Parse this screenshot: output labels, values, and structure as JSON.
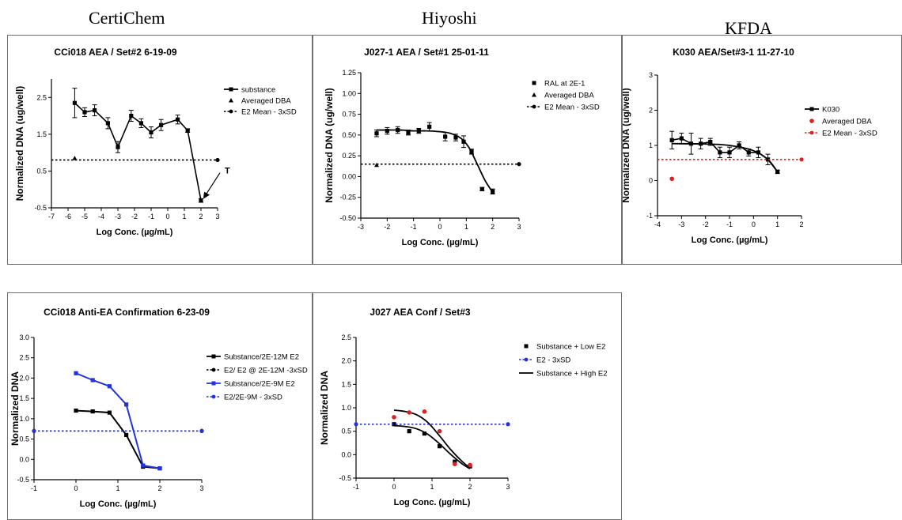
{
  "labs": [
    "CertiChem",
    "Hiyoshi",
    "KFDA"
  ],
  "chart_data": [
    {
      "type": "line",
      "title": "CCi018 AEA / Set#2 6-19-09",
      "xlabel": "Log Conc. (µg/mL)",
      "ylabel": "Normalized DNA  (ug/well)",
      "xlim": [
        -7,
        3
      ],
      "ylim": [
        -0.5,
        3.0
      ],
      "xticks": [
        "-7",
        "-6",
        "-5",
        "-4",
        "-3",
        "-2",
        "-1",
        "0",
        "1",
        "2",
        "3"
      ],
      "yticks": [
        "-0.5",
        "0.5",
        "1.5",
        "2.5"
      ],
      "grid": false,
      "legend_position": "right",
      "annotation": "T",
      "series": [
        {
          "name": "substance",
          "style": "solid-square",
          "color": "#000000",
          "x": [
            -5.6,
            -5.0,
            -4.4,
            -3.6,
            -3.0,
            -2.2,
            -1.6,
            -1.0,
            -0.4,
            0.6,
            1.2,
            2.0
          ],
          "y": [
            2.35,
            2.1,
            2.15,
            1.8,
            1.15,
            2.0,
            1.8,
            1.55,
            1.75,
            1.9,
            1.6,
            -0.3
          ],
          "err": [
            0.4,
            0.12,
            0.15,
            0.15,
            0.15,
            0.15,
            0.12,
            0.15,
            0.15,
            0.12,
            0.05,
            0.05
          ]
        },
        {
          "name": "Averaged DBA",
          "style": "triangle-only",
          "color": "#000000",
          "x": [
            -5.6
          ],
          "y": [
            0.85
          ]
        },
        {
          "name": "E2 Mean - 3xSD",
          "style": "dotted",
          "color": "#000000",
          "x": [
            -7,
            3
          ],
          "y": [
            0.8,
            0.8
          ]
        }
      ]
    },
    {
      "type": "line",
      "title": "J027-1 AEA / Set#1 25-01-11",
      "xlabel": "Log Conc. (µg/mL)",
      "ylabel": "Normalized DNA  (ug/well)",
      "xlim": [
        -3,
        3
      ],
      "ylim": [
        -0.5,
        1.25
      ],
      "xticks": [
        "-3",
        "-2",
        "-1",
        "0",
        "1",
        "2",
        "3"
      ],
      "yticks": [
        "-0.50",
        "-0.25",
        "0.00",
        "0.25",
        "0.50",
        "0.75",
        "1.00",
        "1.25"
      ],
      "grid": false,
      "legend_position": "right",
      "series": [
        {
          "name": "RAL at 2E-1",
          "style": "fit-curve-squares",
          "color": "#000000",
          "x": [
            -2.4,
            -2.0,
            -1.6,
            -1.2,
            -0.8,
            -0.4,
            0.2,
            0.6,
            0.9,
            1.2,
            1.6,
            2.0
          ],
          "y": [
            0.52,
            0.55,
            0.56,
            0.53,
            0.55,
            0.6,
            0.48,
            0.47,
            0.42,
            0.3,
            -0.15,
            -0.18
          ],
          "err": [
            0.04,
            0.04,
            0.04,
            0.03,
            0.03,
            0.05,
            0.05,
            0.04,
            0.07,
            0.03,
            0.02,
            0.03
          ],
          "fit_x": [
            -2.4,
            -2.0,
            -1.5,
            -1.0,
            -0.5,
            0.0,
            0.4,
            0.8,
            1.1,
            1.4,
            1.7,
            2.0
          ],
          "fit_y": [
            0.56,
            0.56,
            0.56,
            0.55,
            0.55,
            0.54,
            0.52,
            0.46,
            0.35,
            0.16,
            -0.04,
            -0.19
          ]
        },
        {
          "name": "Averaged DBA",
          "style": "triangle-only",
          "color": "#000000",
          "x": [
            -2.4
          ],
          "y": [
            0.14
          ]
        },
        {
          "name": "E2 Mean - 3xSD",
          "style": "dotted",
          "color": "#000000",
          "x": [
            -3,
            3
          ],
          "y": [
            0.15,
            0.15
          ]
        }
      ]
    },
    {
      "type": "line",
      "title": "K030 AEA/Set#3-1 11-27-10",
      "xlabel": "Log Conc. (µg/mL)",
      "ylabel": "Normalized DNA (ug/well)",
      "xlim": [
        -4,
        2
      ],
      "ylim": [
        -1,
        3
      ],
      "xticks": [
        "-4",
        "-3",
        "-2",
        "-1",
        "0",
        "1",
        "2"
      ],
      "yticks": [
        "-1",
        "0",
        "1",
        "2",
        "3"
      ],
      "grid": false,
      "legend_position": "right",
      "series": [
        {
          "name": "K030",
          "style": "solid-square",
          "color": "#000000",
          "x": [
            -3.4,
            -3.0,
            -2.6,
            -2.2,
            -1.8,
            -1.4,
            -1.0,
            -0.6,
            -0.2,
            0.2,
            0.6,
            1.0
          ],
          "y": [
            1.15,
            1.2,
            1.05,
            1.05,
            1.1,
            0.8,
            0.8,
            1.0,
            0.8,
            0.8,
            0.6,
            0.25
          ],
          "err": [
            0.25,
            0.15,
            0.3,
            0.15,
            0.1,
            0.15,
            0.15,
            0.1,
            0.1,
            0.15,
            0.15,
            0.05
          ],
          "fit_x": [
            -3.4,
            -2.0,
            -1.0,
            0.0,
            0.6,
            1.0
          ],
          "fit_y": [
            1.05,
            1.04,
            1.0,
            0.85,
            0.6,
            0.25
          ]
        },
        {
          "name": "Averaged DBA",
          "style": "dot-only",
          "color": "#e02020",
          "x": [
            -3.4
          ],
          "y": [
            0.05
          ]
        },
        {
          "name": "E2 Mean - 3xSD",
          "style": "dotted",
          "color": "#e02020",
          "x": [
            -4,
            2
          ],
          "y": [
            0.6,
            0.6
          ]
        }
      ]
    },
    {
      "type": "line",
      "title": "CCi018 Anti-EA Confirmation 6-23-09",
      "xlabel": "Log Conc. (µg/mL)",
      "ylabel": "Normalized DNA",
      "xlim": [
        -1,
        3
      ],
      "ylim": [
        -0.5,
        3.0
      ],
      "xticks": [
        "-1",
        "0",
        "1",
        "2",
        "3"
      ],
      "yticks": [
        "-0.5",
        "0.0",
        "0.5",
        "1.0",
        "1.5",
        "2.0",
        "2.5",
        "3.0"
      ],
      "grid": false,
      "legend_position": "right",
      "series": [
        {
          "name": "Substance/2E-12M E2",
          "style": "solid-square",
          "color": "#000000",
          "x": [
            0,
            0.4,
            0.8,
            1.2,
            1.6,
            2.0
          ],
          "y": [
            1.2,
            1.18,
            1.15,
            0.6,
            -0.18,
            -0.22
          ]
        },
        {
          "name": "E2/ E2 @ 2E-12M -3xSD",
          "style": "dotted",
          "color": "#000000",
          "x": [
            -1,
            3
          ],
          "y": [
            0.7,
            0.7
          ]
        },
        {
          "name": "Substance/2E-9M E2",
          "style": "solid-square",
          "color": "#2233dd",
          "x": [
            0,
            0.4,
            0.8,
            1.2,
            1.6,
            2.0
          ],
          "y": [
            2.12,
            1.95,
            1.8,
            1.35,
            -0.15,
            -0.22
          ]
        },
        {
          "name": "E2/2E-9M - 3xSD",
          "style": "dotted",
          "color": "#2233dd",
          "x": [
            -1,
            3
          ],
          "y": [
            0.7,
            0.7
          ]
        }
      ]
    },
    {
      "type": "line",
      "title": "J027 AEA Conf / Set#3",
      "xlabel": "Log Conc. (µg/mL)",
      "ylabel": "Normalized DNA",
      "xlim": [
        -1,
        3
      ],
      "ylim": [
        -0.5,
        2.5
      ],
      "xticks": [
        "-1",
        "0",
        "1",
        "2",
        "3"
      ],
      "yticks": [
        "-0.5",
        "0.0",
        "0.5",
        "1.0",
        "1.5",
        "2.0",
        "2.5"
      ],
      "grid": false,
      "legend_position": "right",
      "series": [
        {
          "name": "Substance + Low E2",
          "style": "fit-curve-squares",
          "color": "#000000",
          "x": [
            0,
            0.4,
            0.8,
            1.2,
            1.6,
            2.0
          ],
          "y": [
            0.65,
            0.5,
            0.45,
            0.18,
            -0.15,
            -0.25
          ],
          "fit_x": [
            0,
            0.3,
            0.6,
            0.9,
            1.2,
            1.5,
            1.8,
            2.0
          ],
          "fit_y": [
            0.62,
            0.6,
            0.55,
            0.43,
            0.23,
            0.0,
            -0.2,
            -0.3
          ]
        },
        {
          "name": "E2 - 3xSD",
          "style": "dotted",
          "color": "#2233dd",
          "x": [
            -1,
            3
          ],
          "y": [
            0.65,
            0.65
          ]
        },
        {
          "name": "Substance + High E2",
          "style": "fit-curve-points",
          "color": "#e02020",
          "x": [
            0,
            0.4,
            0.8,
            1.2,
            1.6,
            2.0
          ],
          "y": [
            0.8,
            0.9,
            0.92,
            0.5,
            -0.2,
            -0.22
          ],
          "fit_x": [
            0,
            0.3,
            0.6,
            0.9,
            1.2,
            1.5,
            1.8,
            2.0
          ],
          "fit_y": [
            0.95,
            0.92,
            0.85,
            0.68,
            0.4,
            0.1,
            -0.15,
            -0.28
          ]
        }
      ]
    }
  ]
}
